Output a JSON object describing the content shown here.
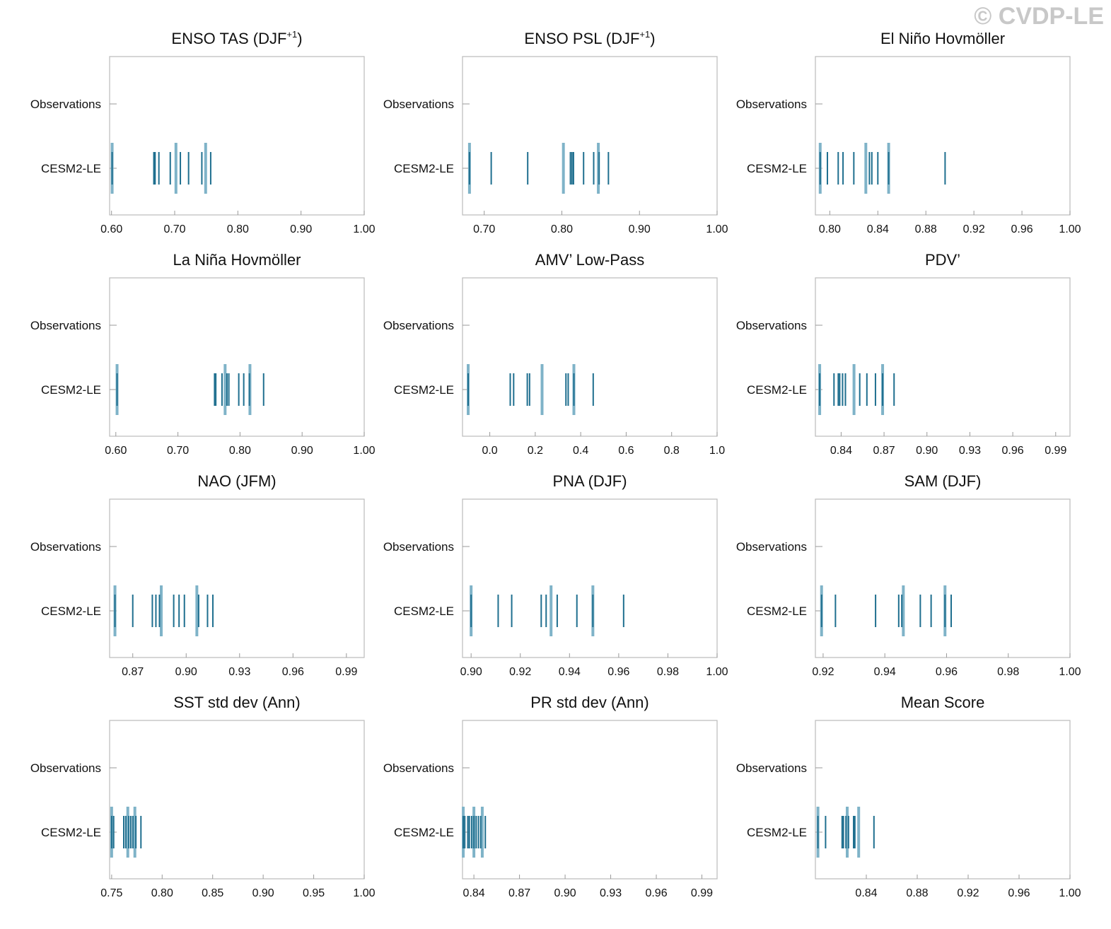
{
  "watermark": "© CVDP-LE",
  "colors": {
    "dark": "#1f6f8f",
    "light": "#7fb3c8",
    "frame": "#bbbbbb",
    "tick": "#999999"
  },
  "chart_data": [
    {
      "type": "strip",
      "title": "ENSO TAS (DJF",
      "title_sup": "+1",
      "title_after": ")",
      "rows": [
        "Observations",
        "CESM2-LE"
      ],
      "xlim": [
        0.597,
        1.0
      ],
      "xticks": [
        0.6,
        0.7,
        0.8,
        0.9,
        1.0
      ],
      "xtick_labels": [
        "0.60",
        "0.70",
        "0.80",
        "0.90",
        "1.00"
      ],
      "members": [
        0.601,
        0.667,
        0.669,
        0.675,
        0.693,
        0.709,
        0.722,
        0.743,
        0.757
      ],
      "highlights": [
        0.601,
        0.702,
        0.749
      ]
    },
    {
      "type": "strip",
      "title": "ENSO PSL (DJF",
      "title_sup": "+1",
      "title_after": ")",
      "rows": [
        "Observations",
        "CESM2-LE"
      ],
      "xlim": [
        0.672,
        1.0
      ],
      "xticks": [
        0.7,
        0.8,
        0.9,
        1.0
      ],
      "xtick_labels": [
        "0.70",
        "0.80",
        "0.90",
        "1.00"
      ],
      "members": [
        0.681,
        0.709,
        0.756,
        0.811,
        0.813,
        0.815,
        0.828,
        0.841,
        0.848,
        0.86
      ],
      "highlights": [
        0.681,
        0.802,
        0.847
      ]
    },
    {
      "type": "strip",
      "title": "El Niño Hovmöller",
      "title_sup": "",
      "title_after": "",
      "rows": [
        "Observations",
        "CESM2-LE"
      ],
      "xlim": [
        0.788,
        1.0
      ],
      "xticks": [
        0.8,
        0.84,
        0.88,
        0.92,
        0.96,
        1.0
      ],
      "xtick_labels": [
        "0.80",
        "0.84",
        "0.88",
        "0.92",
        "0.96",
        "1.00"
      ],
      "members": [
        0.792,
        0.798,
        0.807,
        0.811,
        0.82,
        0.833,
        0.835,
        0.84,
        0.849,
        0.896
      ],
      "highlights": [
        0.792,
        0.83,
        0.849
      ]
    },
    {
      "type": "strip",
      "title": "La Niña Hovmöller",
      "title_sup": "",
      "title_after": "",
      "rows": [
        "Observations",
        "CESM2-LE"
      ],
      "xlim": [
        0.59,
        1.0
      ],
      "xticks": [
        0.6,
        0.7,
        0.8,
        0.9,
        1.0
      ],
      "xtick_labels": [
        "0.60",
        "0.70",
        "0.80",
        "0.90",
        "1.00"
      ],
      "members": [
        0.602,
        0.759,
        0.761,
        0.771,
        0.779,
        0.782,
        0.798,
        0.806,
        0.815,
        0.838
      ],
      "highlights": [
        0.602,
        0.776,
        0.816
      ]
    },
    {
      "type": "strip",
      "title": "AMV’ Low-Pass",
      "title_sup": "",
      "title_after": "",
      "rows": [
        "Observations",
        "CESM2-LE"
      ],
      "xlim": [
        -0.12,
        1.0
      ],
      "xticks": [
        0.0,
        0.2,
        0.4,
        0.6,
        0.8,
        1.0
      ],
      "xtick_labels": [
        "0.0",
        "0.2",
        "0.4",
        "0.6",
        "0.8",
        "1.0"
      ],
      "members": [
        -0.095,
        0.09,
        0.105,
        0.165,
        0.175,
        0.335,
        0.345,
        0.37,
        0.455
      ],
      "highlights": [
        -0.095,
        0.23,
        0.37
      ]
    },
    {
      "type": "strip",
      "title": "PDV’",
      "title_sup": "",
      "title_after": "",
      "rows": [
        "Observations",
        "CESM2-LE"
      ],
      "xlim": [
        0.822,
        1.0
      ],
      "xticks": [
        0.84,
        0.87,
        0.9,
        0.93,
        0.96,
        0.99
      ],
      "xtick_labels": [
        "0.84",
        "0.87",
        "0.90",
        "0.93",
        "0.96",
        "0.99"
      ],
      "members": [
        0.825,
        0.835,
        0.838,
        0.839,
        0.841,
        0.843,
        0.853,
        0.858,
        0.864,
        0.869,
        0.877
      ],
      "highlights": [
        0.825,
        0.849,
        0.869
      ]
    },
    {
      "type": "strip",
      "title": "NAO (JFM)",
      "title_sup": "",
      "title_after": "",
      "rows": [
        "Observations",
        "CESM2-LE"
      ],
      "xlim": [
        0.857,
        1.0
      ],
      "xticks": [
        0.87,
        0.9,
        0.93,
        0.96,
        0.99
      ],
      "xtick_labels": [
        "0.87",
        "0.90",
        "0.93",
        "0.96",
        "0.99"
      ],
      "members": [
        0.86,
        0.87,
        0.881,
        0.883,
        0.885,
        0.893,
        0.896,
        0.899,
        0.907,
        0.912,
        0.915
      ],
      "highlights": [
        0.86,
        0.886,
        0.906
      ]
    },
    {
      "type": "strip",
      "title": "PNA (DJF)",
      "title_sup": "",
      "title_after": "",
      "rows": [
        "Observations",
        "CESM2-LE"
      ],
      "xlim": [
        0.8965,
        1.0
      ],
      "xticks": [
        0.9,
        0.92,
        0.94,
        0.96,
        0.98,
        1.0
      ],
      "xtick_labels": [
        "0.90",
        "0.92",
        "0.94",
        "0.96",
        "0.98",
        "1.00"
      ],
      "members": [
        0.9,
        0.911,
        0.9165,
        0.9285,
        0.9305,
        0.935,
        0.943,
        0.9495,
        0.962
      ],
      "highlights": [
        0.9,
        0.9325,
        0.9495
      ]
    },
    {
      "type": "strip",
      "title": "SAM (DJF)",
      "title_sup": "",
      "title_after": "",
      "rows": [
        "Observations",
        "CESM2-LE"
      ],
      "xlim": [
        0.9175,
        1.0
      ],
      "xticks": [
        0.92,
        0.94,
        0.96,
        0.98,
        1.0
      ],
      "xtick_labels": [
        "0.92",
        "0.94",
        "0.96",
        "0.98",
        "1.00"
      ],
      "members": [
        0.9195,
        0.924,
        0.937,
        0.9445,
        0.9455,
        0.9515,
        0.955,
        0.9595,
        0.9615
      ],
      "highlights": [
        0.9195,
        0.946,
        0.9595
      ]
    },
    {
      "type": "strip",
      "title": "SST std dev (Ann)",
      "title_sup": "",
      "title_after": "",
      "rows": [
        "Observations",
        "CESM2-LE"
      ],
      "xlim": [
        0.748,
        1.0
      ],
      "xticks": [
        0.75,
        0.8,
        0.85,
        0.9,
        0.95,
        1.0
      ],
      "xtick_labels": [
        "0.75",
        "0.80",
        "0.85",
        "0.90",
        "0.95",
        "1.00"
      ],
      "members": [
        0.75,
        0.752,
        0.762,
        0.764,
        0.767,
        0.769,
        0.771,
        0.774,
        0.779
      ],
      "highlights": [
        0.75,
        0.766,
        0.773
      ]
    },
    {
      "type": "strip",
      "title": "PR std dev (Ann)",
      "title_sup": "",
      "title_after": "",
      "rows": [
        "Observations",
        "CESM2-LE"
      ],
      "xlim": [
        0.8325,
        1.0
      ],
      "xticks": [
        0.84,
        0.87,
        0.9,
        0.93,
        0.96,
        0.99
      ],
      "xtick_labels": [
        "0.84",
        "0.87",
        "0.90",
        "0.93",
        "0.96",
        "0.99"
      ],
      "members": [
        0.833,
        0.834,
        0.836,
        0.837,
        0.8385,
        0.84,
        0.8415,
        0.843,
        0.8445,
        0.8475
      ],
      "highlights": [
        0.833,
        0.84,
        0.8455
      ]
    },
    {
      "type": "strip",
      "title": "Mean Score",
      "title_sup": "",
      "title_after": "",
      "rows": [
        "Observations",
        "CESM2-LE"
      ],
      "xlim": [
        0.8,
        1.0
      ],
      "xticks": [
        0.84,
        0.88,
        0.92,
        0.96,
        1.0
      ],
      "xtick_labels": [
        "0.84",
        "0.88",
        "0.92",
        "0.96",
        "1.00"
      ],
      "members": [
        0.802,
        0.808,
        0.821,
        0.822,
        0.824,
        0.826,
        0.83,
        0.831,
        0.846
      ],
      "highlights": [
        0.802,
        0.825,
        0.834
      ]
    }
  ]
}
